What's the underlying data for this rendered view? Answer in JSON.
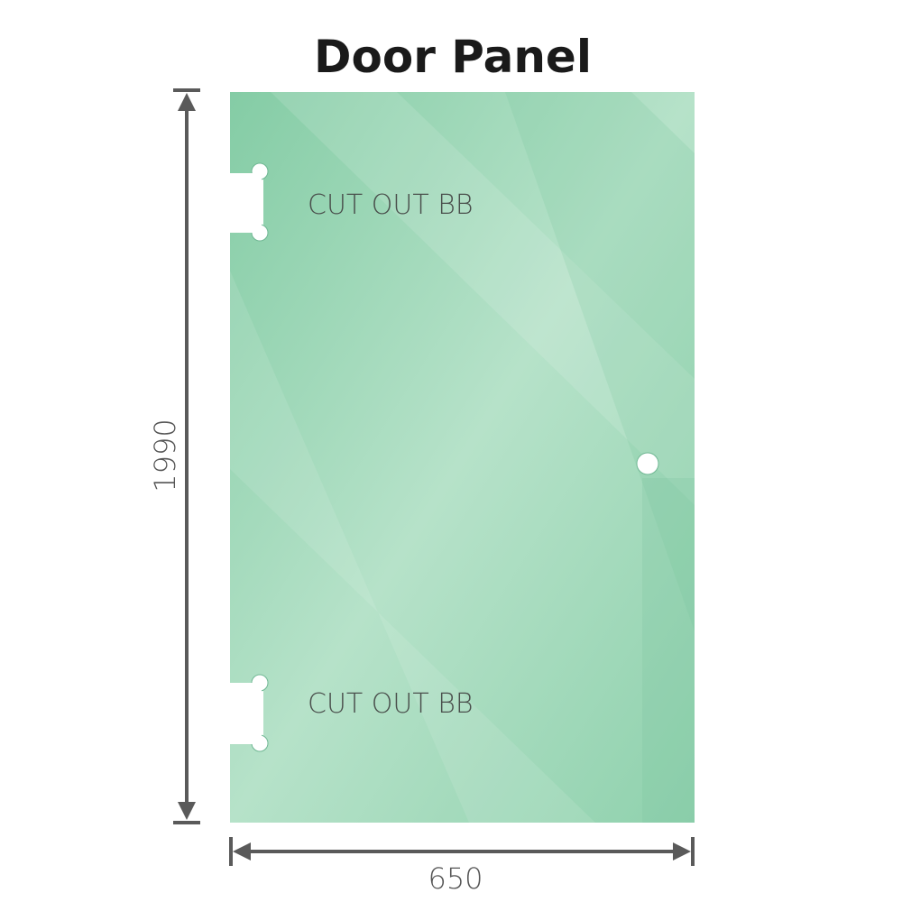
{
  "title": "Door Panel",
  "panel": {
    "color": "#8dd0ac",
    "cutout_labels": [
      "CUT OUT BB",
      "CUT OUT BB"
    ]
  },
  "dimensions": {
    "height": "1990",
    "width": "650",
    "line_color": "#5a5a5a"
  }
}
